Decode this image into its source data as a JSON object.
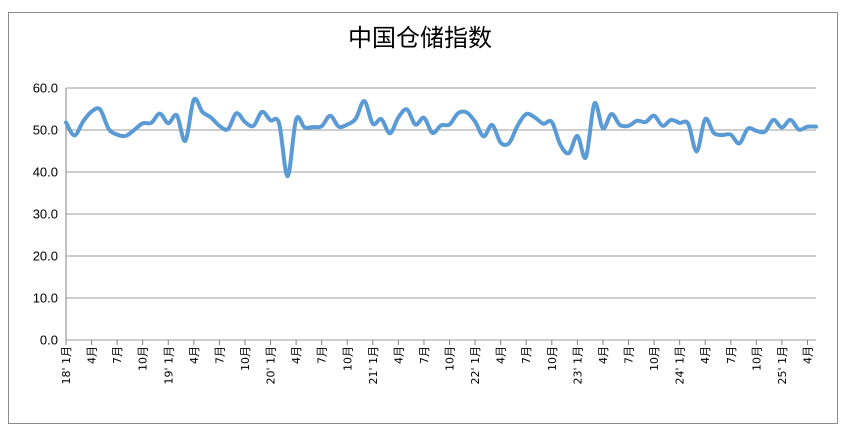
{
  "chart_data": {
    "type": "line",
    "title": "中国仓储指数",
    "xlabel": "",
    "ylabel": "",
    "ylim": [
      0,
      60
    ],
    "yticks": [
      "0.0",
      "10.0",
      "20.0",
      "30.0",
      "40.0",
      "50.0",
      "60.0"
    ],
    "grid": true,
    "legend": "none",
    "colors": {
      "line": "#5b9bd5",
      "grid": "#9e9e9e"
    },
    "x_tick_labels": [
      "18' 1月",
      "4月",
      "7月",
      "10月",
      "19' 1月",
      "4月",
      "7月",
      "10月",
      "20' 1月",
      "4月",
      "7月",
      "10月",
      "21' 1月",
      "4月",
      "7月",
      "10月",
      "22' 1月",
      "4月",
      "7月",
      "10月",
      "23' 1月",
      "4月",
      "7月",
      "10月",
      "24' 1月",
      "4月",
      "7月",
      "10月",
      "25' 1月",
      "4月"
    ],
    "series": [
      {
        "values": [
          51.8,
          48.7,
          52.0,
          54.4,
          54.9,
          50.3,
          48.9,
          48.6,
          50.0,
          51.6,
          51.7,
          53.9,
          51.6,
          53.5,
          47.4,
          57.2,
          54.3,
          53.0,
          51.0,
          50.2,
          54.0,
          51.9,
          51.0,
          54.3,
          52.3,
          51.6,
          39.0,
          52.5,
          50.6,
          50.7,
          50.9,
          53.4,
          50.8,
          51.3,
          52.7,
          56.9,
          51.5,
          52.6,
          49.2,
          53.0,
          54.9,
          51.3,
          52.9,
          49.3,
          51.1,
          51.3,
          54.0,
          54.2,
          52.0,
          48.5,
          51.2,
          47.0,
          46.9,
          51.1,
          53.8,
          53.0,
          51.5,
          51.9,
          46.5,
          44.5,
          48.6,
          43.5,
          56.3,
          50.4,
          53.8,
          51.2,
          51.0,
          52.2,
          51.9,
          53.4,
          51.0,
          52.4,
          51.7,
          51.5,
          44.9,
          52.6,
          49.3,
          48.8,
          48.9,
          46.8,
          50.3,
          49.8,
          49.6,
          52.4,
          50.6,
          52.4,
          50.1,
          50.8,
          50.8
        ]
      }
    ]
  }
}
